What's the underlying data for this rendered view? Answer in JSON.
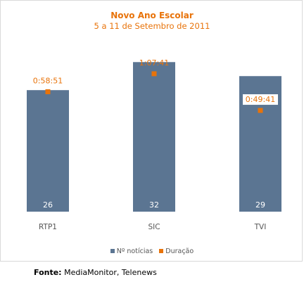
{
  "chart_data": {
    "type": "bar",
    "title": "Novo Ano Escolar",
    "subtitle": "5 a 11 de Setembro de 2011",
    "categories": [
      "RTP1",
      "SIC",
      "TVI"
    ],
    "series": [
      {
        "name": "Nº notícias",
        "type": "bar",
        "color": "#5b7592",
        "values": [
          26,
          32,
          29
        ],
        "labels": [
          "26",
          "32",
          "29"
        ]
      },
      {
        "name": "Duração",
        "type": "point",
        "color": "#e8730a",
        "values_seconds": [
          3531,
          4061,
          2981
        ],
        "labels": [
          "0:58:51",
          "1:07:41",
          "0:49:41"
        ]
      }
    ],
    "ylim": [
      0,
      34
    ],
    "y2lim_seconds": [
      0,
      4680
    ],
    "grid": false,
    "legend_position": "bottom"
  },
  "source": {
    "label": "Fonte:",
    "text": "MediaMonitor, Telenews"
  }
}
